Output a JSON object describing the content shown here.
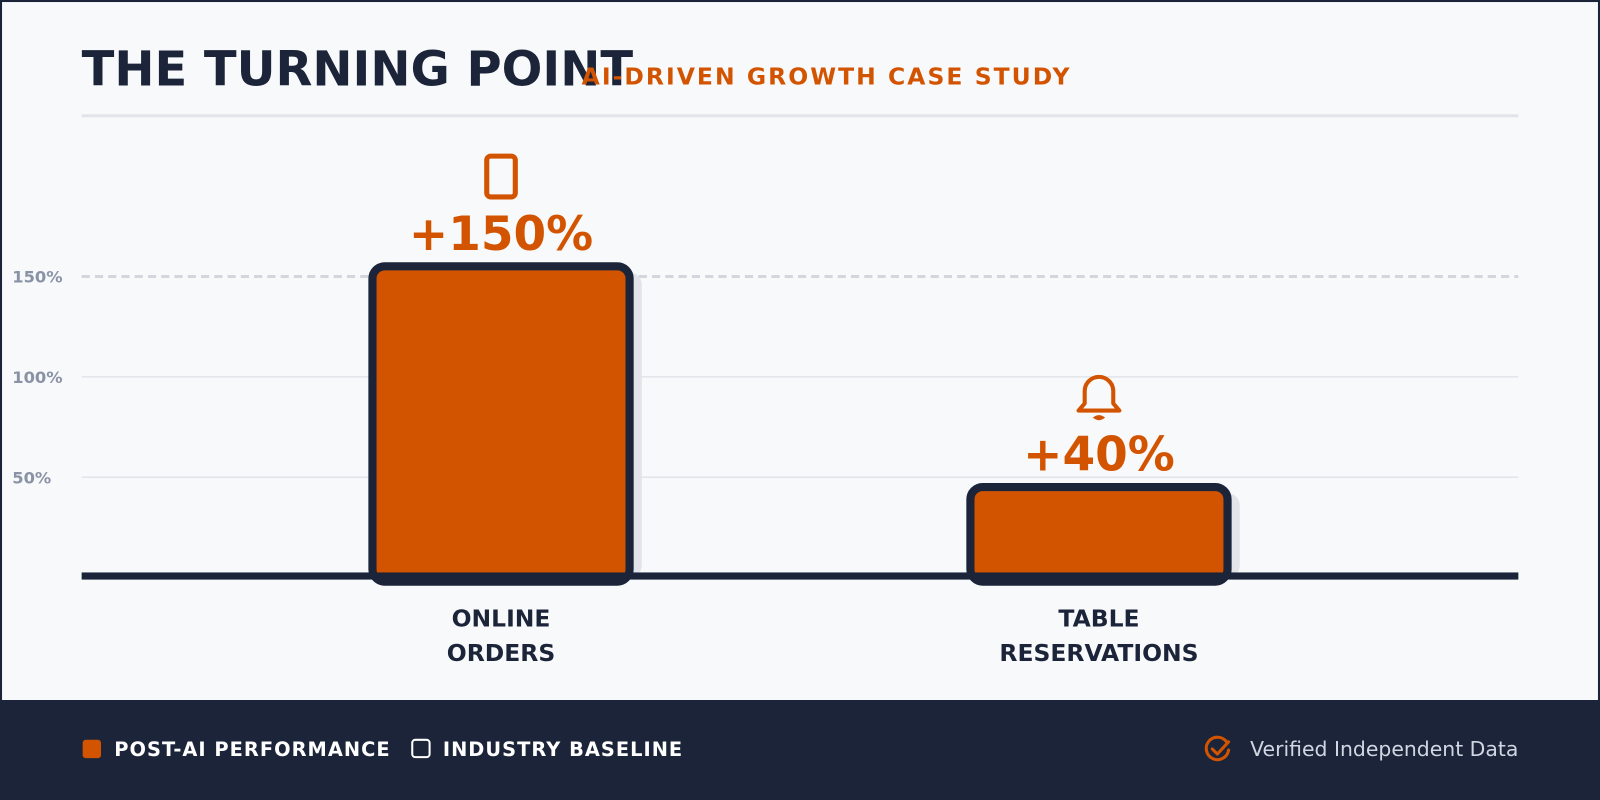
{
  "header": {
    "title": "THE TURNING POINT",
    "subtitle": "AI-DRIVEN GROWTH CASE STUDY"
  },
  "chart_data": {
    "type": "bar",
    "categories": [
      [
        "ONLINE",
        "ORDERS"
      ],
      [
        "TABLE",
        "RESERVATIONS"
      ]
    ],
    "values": [
      150,
      40
    ],
    "value_labels": [
      "+150%",
      "+40%"
    ],
    "icons": [
      "smartphone-icon",
      "bell-icon"
    ],
    "yticks": [
      {
        "v": 50,
        "label": "50%"
      },
      {
        "v": 100,
        "label": "100%"
      },
      {
        "v": 150,
        "label": "150%"
      }
    ],
    "ylim": [
      0,
      150
    ],
    "grid": true,
    "legend_placement": "bottom-left",
    "series": [
      {
        "name": "POST-AI PERFORMANCE",
        "values": [
          150,
          40
        ],
        "color": "#d35400"
      }
    ]
  },
  "legend": {
    "items": [
      {
        "label": "POST-AI PERFORMANCE",
        "color": "#d35400"
      },
      {
        "label": "INDUSTRY BASELINE",
        "color": "#1b2438"
      }
    ]
  },
  "footer": {
    "verified": "Verified Independent Data"
  },
  "colors": {
    "accent": "#d35400",
    "dark": "#1b2438",
    "background": "#f8f9fb"
  }
}
